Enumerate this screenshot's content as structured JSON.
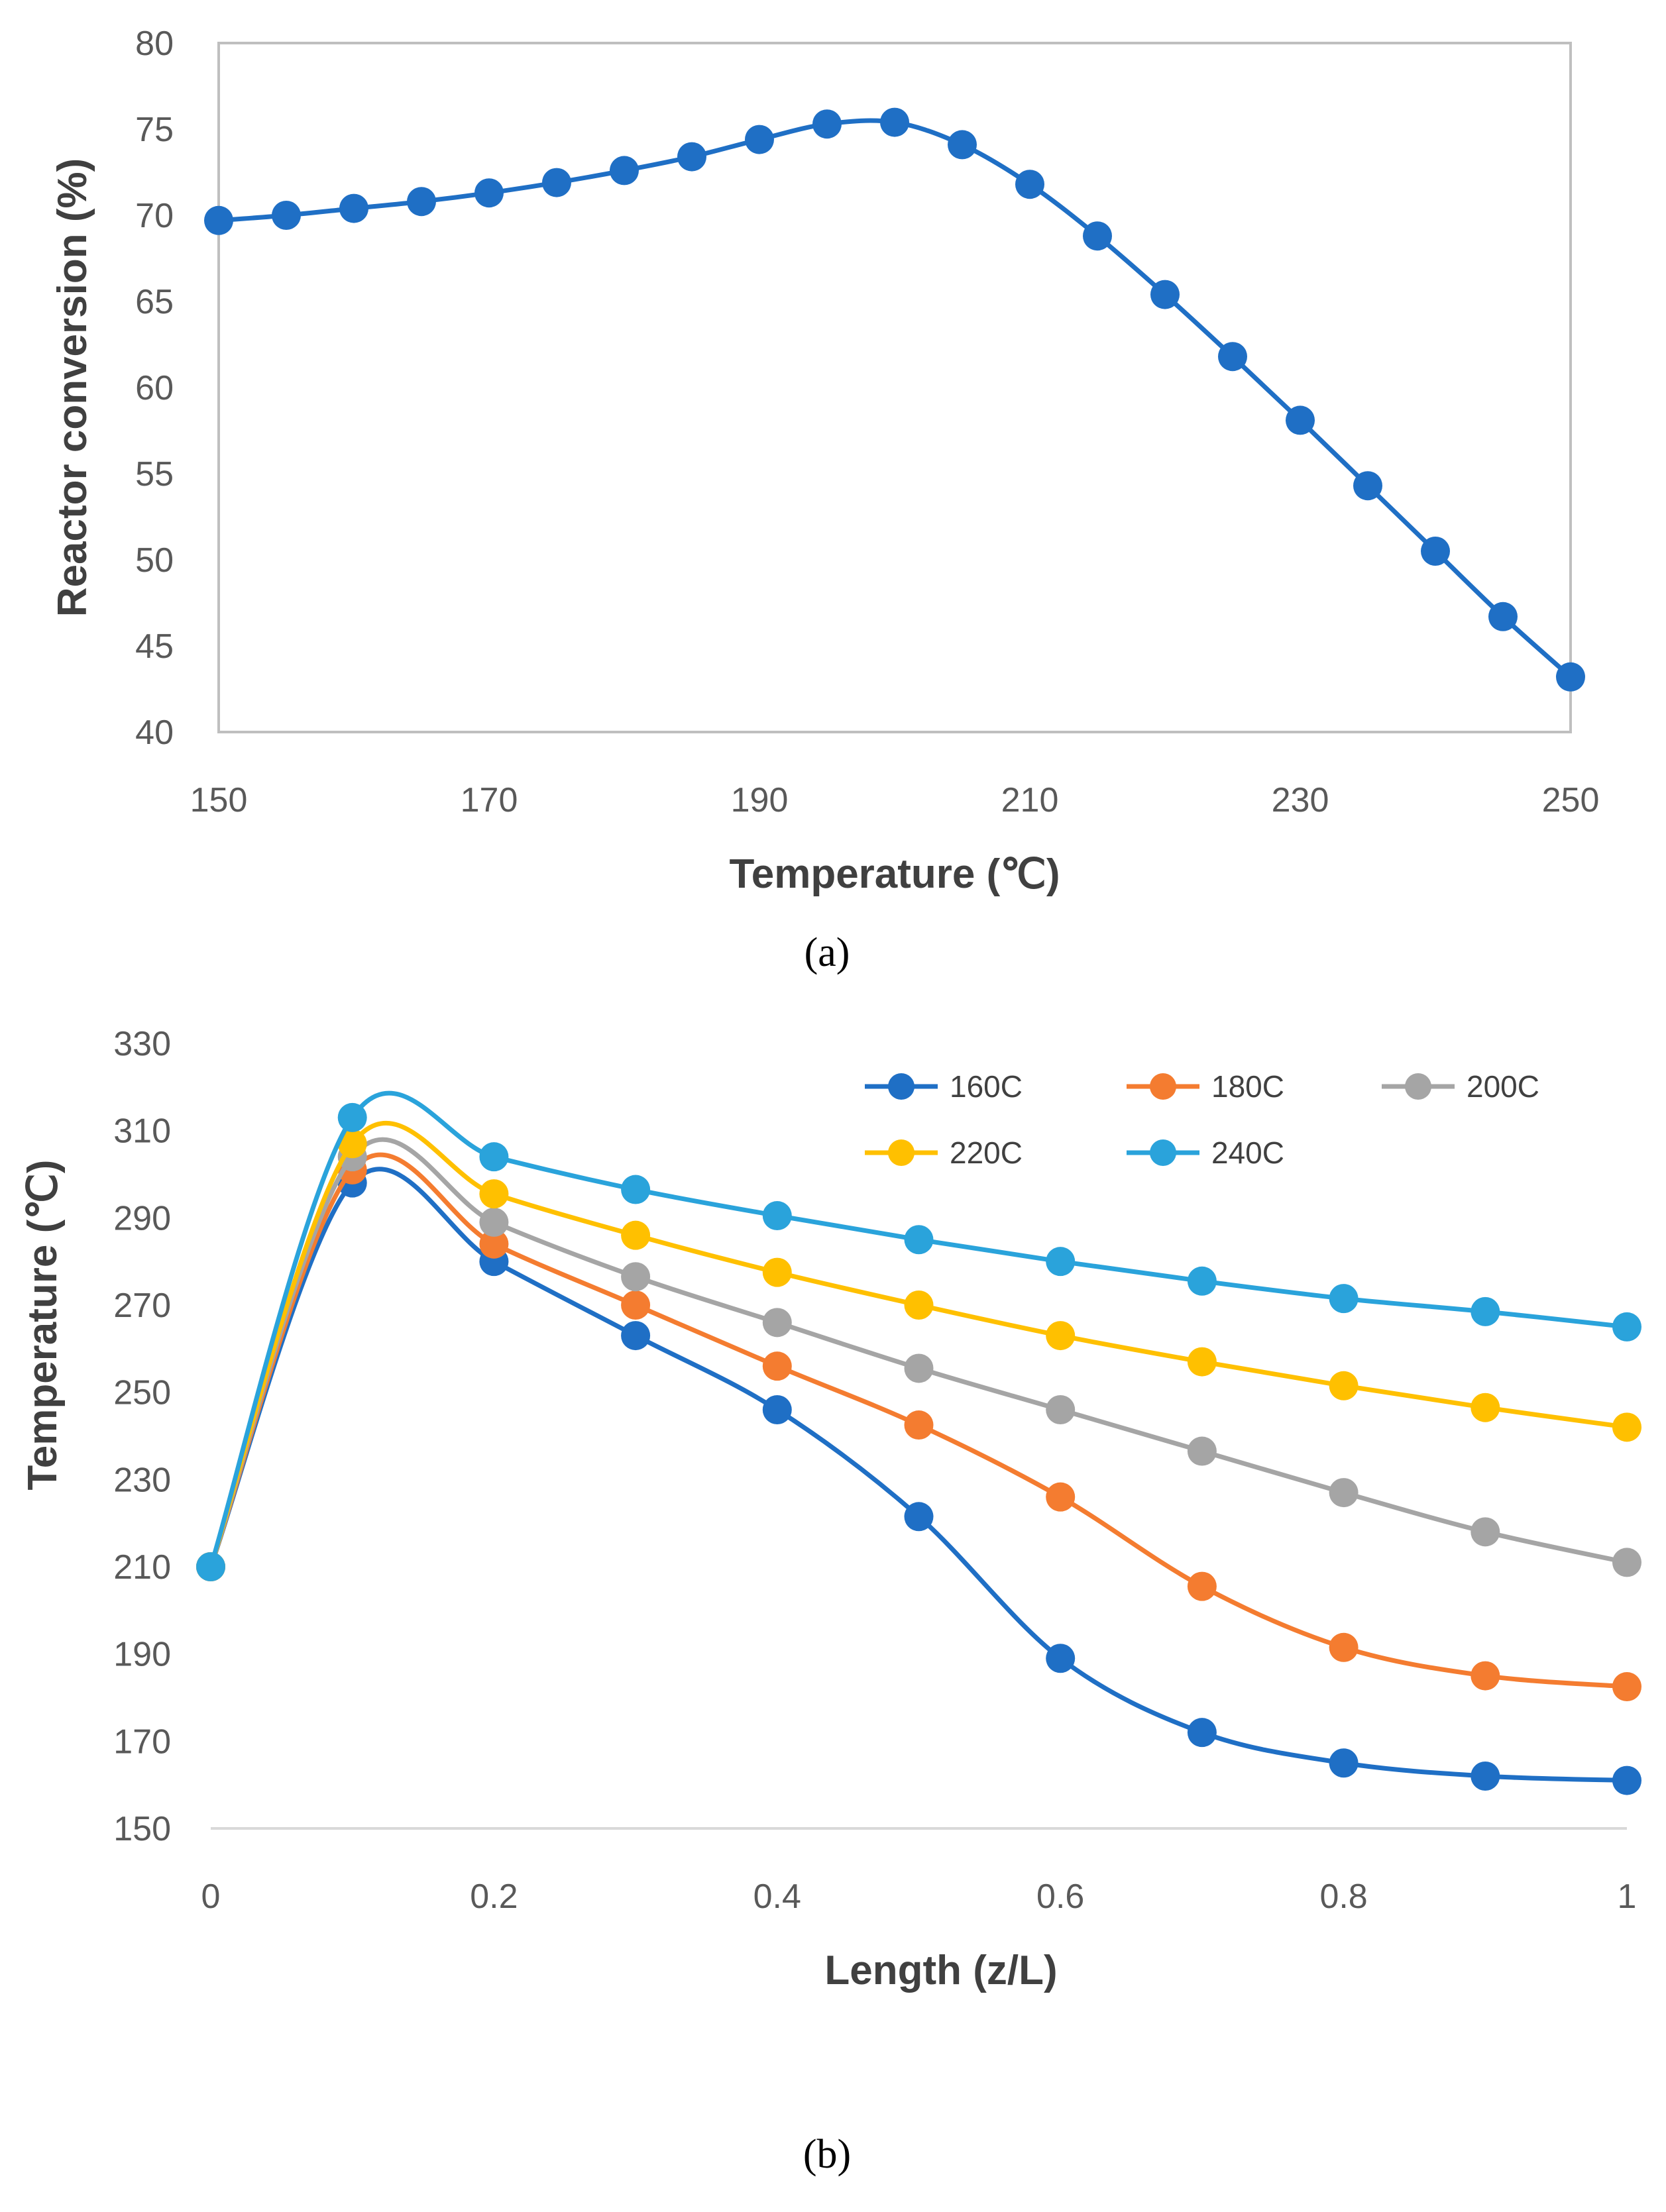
{
  "chart_data": [
    {
      "type": "line",
      "caption": "(a)",
      "xlabel": "Temperature (℃)",
      "ylabel": "Reactor conversion (%)",
      "xlim": [
        150,
        250
      ],
      "ylim": [
        40,
        80
      ],
      "xticks": [
        "150",
        "170",
        "190",
        "210",
        "230",
        "250"
      ],
      "yticks": [
        "40",
        "45",
        "50",
        "55",
        "60",
        "65",
        "70",
        "75",
        "80"
      ],
      "grid": false,
      "series": [
        {
          "name": "Reactor conversion",
          "color": "#1F6FC5",
          "x": [
            150,
            155,
            160,
            165,
            170,
            175,
            180,
            185,
            190,
            195,
            200,
            205,
            210,
            215,
            220,
            225,
            230,
            235,
            240,
            245,
            250
          ],
          "y": [
            69.7,
            70.0,
            70.4,
            70.8,
            71.3,
            71.9,
            72.6,
            73.4,
            74.4,
            75.3,
            75.4,
            74.1,
            71.8,
            68.8,
            65.4,
            61.8,
            58.1,
            54.3,
            50.5,
            46.7,
            43.2
          ]
        }
      ]
    },
    {
      "type": "line",
      "caption": "(b)",
      "xlabel": "Length (z/L)",
      "ylabel": "Temperature (℃)",
      "xlim": [
        0,
        1
      ],
      "ylim": [
        150,
        330
      ],
      "xticks": [
        "0",
        "0.2",
        "0.4",
        "0.6",
        "0.8",
        "1"
      ],
      "yticks": [
        "150",
        "170",
        "190",
        "210",
        "230",
        "250",
        "270",
        "290",
        "310",
        "330"
      ],
      "grid": false,
      "legend_position": "top-right",
      "x": [
        0,
        0.1,
        0.2,
        0.3,
        0.4,
        0.5,
        0.6,
        0.7,
        0.8,
        0.9,
        1.0
      ],
      "series": [
        {
          "name": "160C",
          "color": "#1F6FC5",
          "values": [
            210,
            298,
            280,
            263,
            246,
            221.5,
            189,
            172,
            165,
            162,
            161
          ]
        },
        {
          "name": "180C",
          "color": "#F47C30",
          "values": [
            210,
            301,
            284,
            270,
            256,
            242.5,
            226,
            205.5,
            191.5,
            185,
            182.5
          ]
        },
        {
          "name": "200C",
          "color": "#A5A5A5",
          "values": [
            210,
            304,
            289,
            276.5,
            266,
            255.5,
            246,
            236.5,
            227,
            218,
            211
          ]
        },
        {
          "name": "220C",
          "color": "#FFC000",
          "values": [
            210,
            307,
            295.5,
            286,
            277.5,
            270,
            263,
            257,
            251.5,
            246.5,
            242
          ]
        },
        {
          "name": "240C",
          "color": "#2AA3DB",
          "values": [
            210,
            313,
            304,
            296.5,
            290.5,
            285,
            280,
            275.5,
            271.5,
            268.5,
            265
          ]
        }
      ]
    }
  ]
}
